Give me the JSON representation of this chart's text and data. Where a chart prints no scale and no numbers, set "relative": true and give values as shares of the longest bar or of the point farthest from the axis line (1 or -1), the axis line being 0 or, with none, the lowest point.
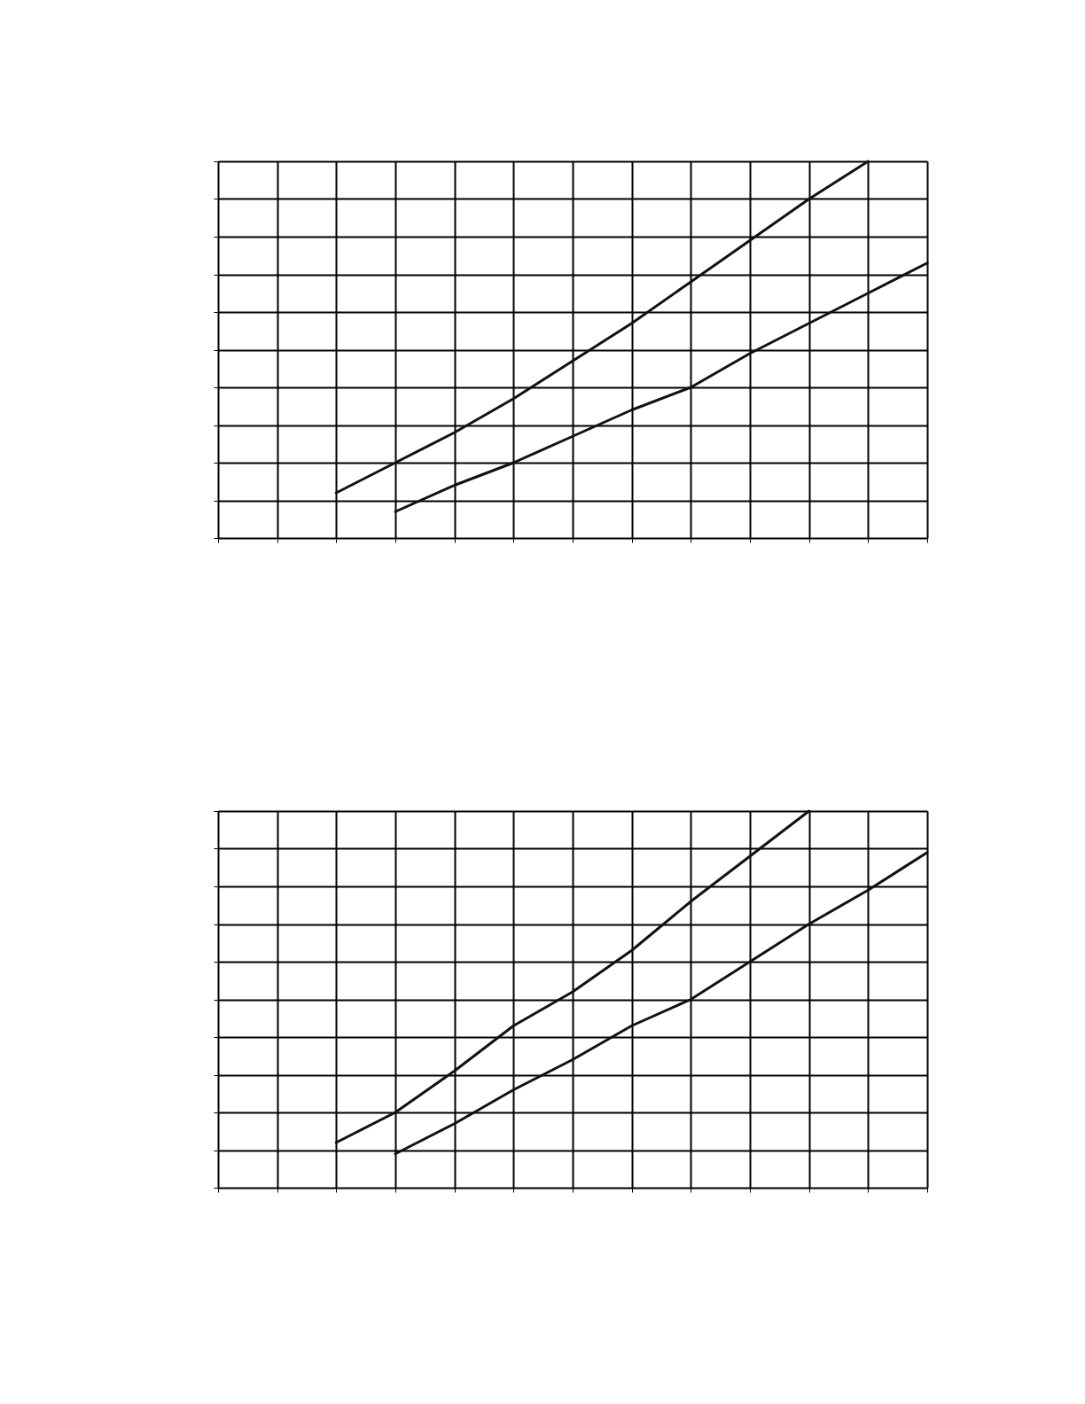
{
  "chart_data": [
    {
      "type": "line",
      "relative": true,
      "grid": true,
      "categories": [
        null,
        null,
        null,
        null,
        null,
        null,
        null,
        null,
        null,
        null,
        null,
        null,
        null
      ],
      "series": [
        {
          "color": "#111111",
          "values": [
            null,
            null,
            0.12,
            0.2,
            0.28,
            0.37,
            0.47,
            0.57,
            0.68,
            0.79,
            0.9,
            1.0,
            null
          ]
        },
        {
          "color": "#111111",
          "values": [
            null,
            null,
            null,
            0.07,
            0.14,
            0.2,
            0.27,
            0.34,
            0.4,
            0.49,
            0.57,
            0.65,
            0.73
          ]
        }
      ]
    },
    {
      "type": "line",
      "relative": true,
      "grid": true,
      "categories": [
        null,
        null,
        null,
        null,
        null,
        null,
        null,
        null,
        null,
        null,
        null,
        null,
        null
      ],
      "series": [
        {
          "color": "#111111",
          "values": [
            null,
            null,
            0.12,
            0.2,
            0.31,
            0.43,
            0.52,
            0.63,
            0.76,
            0.88,
            1.0,
            null,
            null
          ]
        },
        {
          "color": "#111111",
          "values": [
            null,
            null,
            null,
            0.09,
            0.17,
            0.26,
            0.34,
            0.43,
            0.5,
            0.6,
            0.7,
            0.79,
            0.89
          ]
        }
      ]
    }
  ]
}
